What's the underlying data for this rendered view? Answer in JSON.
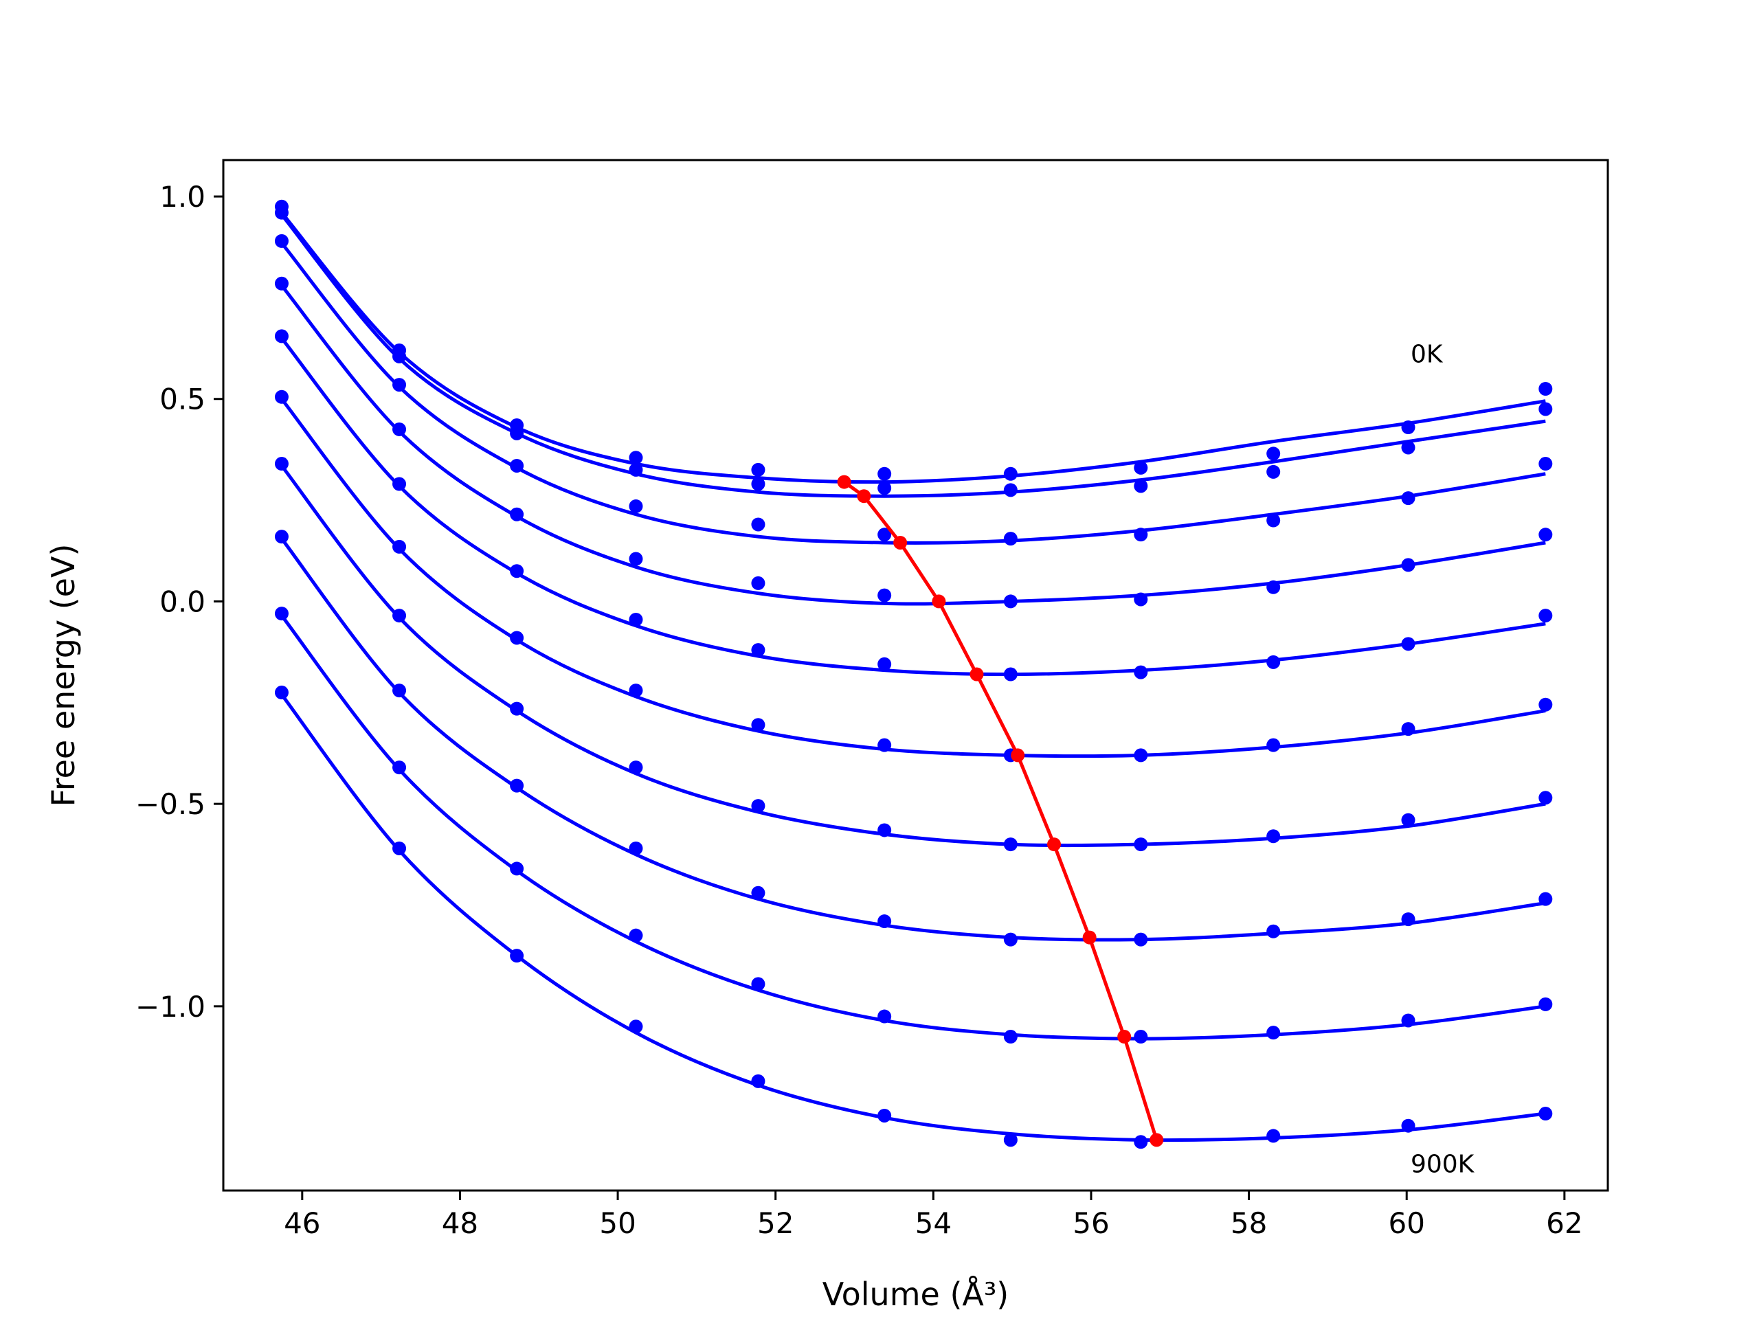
{
  "chart_data": {
    "type": "line",
    "title": "",
    "xlabel": "Volume (Å³)",
    "ylabel": "Free energy (eV)",
    "xlim": [
      45.0,
      62.55
    ],
    "ylim": [
      -1.455,
      1.09
    ],
    "grid": false,
    "legend": "none",
    "xticks": [
      46,
      48,
      50,
      52,
      54,
      56,
      58,
      60,
      62
    ],
    "xtick_labels": [
      "46",
      "48",
      "50",
      "52",
      "54",
      "56",
      "58",
      "60",
      "62"
    ],
    "yticks": [
      1.0,
      0.5,
      0.0,
      -0.5,
      -1.0
    ],
    "ytick_labels": [
      "1.0",
      "0.5",
      "0.0",
      "−0.5",
      "−1.0"
    ],
    "annotations": [
      {
        "text": "0K",
        "x": 60.05,
        "y": 0.59
      },
      {
        "text": "900K",
        "x": 60.05,
        "y": -1.41
      }
    ],
    "colors": {
      "points": "#0000ff",
      "fit": "#0000ff",
      "minima": "#ff0000"
    },
    "volumes": [
      45.74,
      47.23,
      48.72,
      50.23,
      51.78,
      53.38,
      54.98,
      56.63,
      58.31,
      60.02,
      61.76
    ],
    "series": [
      {
        "temperature_index": 0,
        "values": [
          0.975,
          0.62,
          0.435,
          0.355,
          0.325,
          0.315,
          0.315,
          0.33,
          0.365,
          0.43,
          0.525
        ],
        "fit": [
          0.96,
          0.615,
          0.43,
          0.34,
          0.305,
          0.295,
          0.31,
          0.345,
          0.395,
          0.44,
          0.495
        ]
      },
      {
        "temperature_index": 1,
        "values": [
          0.96,
          0.605,
          0.415,
          0.325,
          0.29,
          0.28,
          0.275,
          0.285,
          0.32,
          0.38,
          0.475
        ],
        "fit": [
          0.955,
          0.6,
          0.415,
          0.315,
          0.27,
          0.26,
          0.27,
          0.3,
          0.345,
          0.395,
          0.445
        ]
      },
      {
        "temperature_index": 2,
        "values": [
          0.89,
          0.535,
          0.335,
          0.235,
          0.19,
          0.165,
          0.155,
          0.165,
          0.2,
          0.255,
          0.34
        ],
        "fit": [
          0.885,
          0.53,
          0.33,
          0.215,
          0.16,
          0.145,
          0.15,
          0.175,
          0.215,
          0.26,
          0.315
        ]
      },
      {
        "temperature_index": 3,
        "values": [
          0.785,
          0.425,
          0.215,
          0.105,
          0.045,
          0.015,
          -0.0,
          0.005,
          0.035,
          0.09,
          0.165
        ],
        "fit": [
          0.78,
          0.42,
          0.21,
          0.085,
          0.02,
          -0.005,
          -0.0,
          0.015,
          0.045,
          0.09,
          0.145
        ]
      },
      {
        "temperature_index": 4,
        "values": [
          0.655,
          0.29,
          0.075,
          -0.045,
          -0.12,
          -0.155,
          -0.18,
          -0.175,
          -0.15,
          -0.105,
          -0.035
        ],
        "fit": [
          0.65,
          0.285,
          0.07,
          -0.06,
          -0.135,
          -0.17,
          -0.18,
          -0.17,
          -0.145,
          -0.105,
          -0.055
        ]
      },
      {
        "temperature_index": 5,
        "values": [
          0.505,
          0.135,
          -0.09,
          -0.22,
          -0.305,
          -0.355,
          -0.38,
          -0.38,
          -0.355,
          -0.315,
          -0.255
        ],
        "fit": [
          0.5,
          0.13,
          -0.095,
          -0.235,
          -0.32,
          -0.365,
          -0.38,
          -0.38,
          -0.36,
          -0.325,
          -0.27
        ]
      },
      {
        "temperature_index": 6,
        "values": [
          0.34,
          -0.035,
          -0.265,
          -0.41,
          -0.505,
          -0.565,
          -0.6,
          -0.6,
          -0.58,
          -0.54,
          -0.485
        ],
        "fit": [
          0.335,
          -0.04,
          -0.27,
          -0.425,
          -0.52,
          -0.575,
          -0.6,
          -0.6,
          -0.585,
          -0.555,
          -0.5
        ]
      },
      {
        "temperature_index": 7,
        "values": [
          0.16,
          -0.22,
          -0.455,
          -0.61,
          -0.72,
          -0.79,
          -0.835,
          -0.835,
          -0.815,
          -0.785,
          -0.735
        ],
        "fit": [
          0.155,
          -0.225,
          -0.46,
          -0.625,
          -0.735,
          -0.8,
          -0.83,
          -0.835,
          -0.82,
          -0.795,
          -0.745
        ]
      },
      {
        "temperature_index": 8,
        "values": [
          -0.03,
          -0.41,
          -0.66,
          -0.825,
          -0.945,
          -1.025,
          -1.075,
          -1.075,
          -1.065,
          -1.035,
          -0.995
        ],
        "fit": [
          -0.035,
          -0.415,
          -0.665,
          -0.84,
          -0.96,
          -1.035,
          -1.07,
          -1.08,
          -1.07,
          -1.045,
          -1.0
        ]
      },
      {
        "temperature_index": 9,
        "values": [
          -0.225,
          -0.61,
          -0.875,
          -1.05,
          -1.185,
          -1.27,
          -1.33,
          -1.335,
          -1.32,
          -1.295,
          -1.265
        ],
        "fit": [
          -0.23,
          -0.615,
          -0.875,
          -1.065,
          -1.195,
          -1.275,
          -1.315,
          -1.33,
          -1.325,
          -1.305,
          -1.265
        ]
      }
    ],
    "minima": {
      "x": [
        52.87,
        53.12,
        53.58,
        54.07,
        54.55,
        55.07,
        55.53,
        55.98,
        56.42,
        56.83
      ],
      "y": [
        0.295,
        0.26,
        0.145,
        0.0,
        -0.18,
        -0.38,
        -0.6,
        -0.83,
        -1.075,
        -1.33
      ]
    }
  }
}
